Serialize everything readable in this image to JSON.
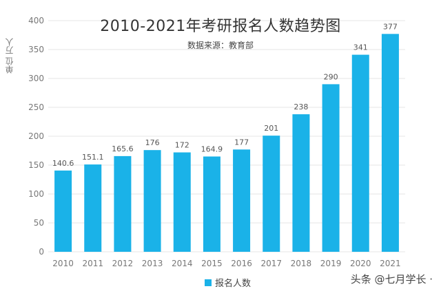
{
  "title": "2010-2021年考研报名人数趋势图",
  "subtitle": "数据来源：教育部",
  "unit_label": "单位 万人",
  "watermark": "头条 @七月学长 ·",
  "colors": {
    "bar": "#1ab2e8",
    "grid": "#e6e6e6",
    "text": "#777777"
  },
  "chart_data": {
    "type": "bar",
    "title": "2010-2021年考研报名人数趋势图",
    "categories": [
      "2010",
      "2011",
      "2012",
      "2013",
      "2014",
      "2015",
      "2016",
      "2017",
      "2018",
      "2019",
      "2020",
      "2021"
    ],
    "series": [
      {
        "name": "报名人数",
        "values": [
          140.6,
          151.1,
          165.6,
          176,
          172,
          164.9,
          177,
          201,
          238,
          290,
          341,
          377
        ],
        "labels": [
          "140.6",
          "151.1",
          "165.6",
          "176",
          "172",
          "164.9",
          "177",
          "201",
          "238",
          "290",
          "341",
          "377"
        ]
      }
    ],
    "ylim": [
      0,
      400
    ],
    "yticks": [
      0,
      50,
      100,
      150,
      200,
      250,
      300,
      350,
      400
    ],
    "grid": true,
    "legend": "bottom-center"
  }
}
